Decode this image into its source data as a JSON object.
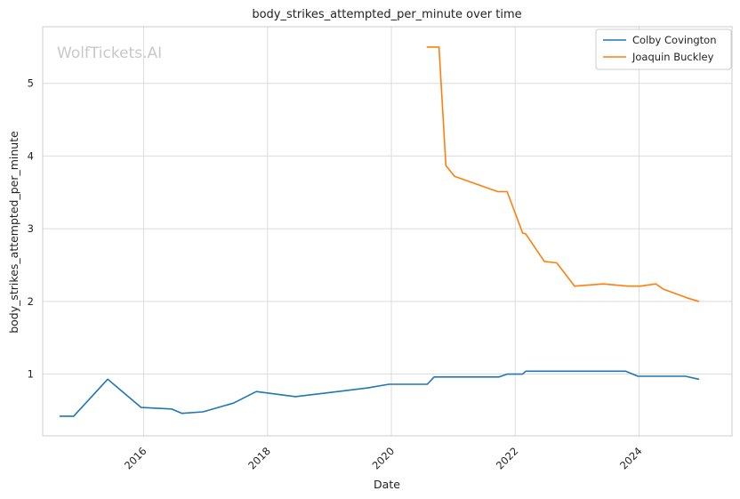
{
  "chart_data": {
    "type": "line",
    "title": "body_strikes_attempted_per_minute over time",
    "xlabel": "Date",
    "ylabel": "body_strikes_attempted_per_minute",
    "watermark": "WolfTickets.AI",
    "xlim": [
      2014.37,
      2025.5
    ],
    "ylim": [
      0.15,
      5.78
    ],
    "x_ticks": [
      2016,
      2018,
      2020,
      2022,
      2024
    ],
    "y_ticks": [
      1,
      2,
      3,
      4,
      5
    ],
    "grid": true,
    "legend_position": "top-right",
    "series": [
      {
        "name": "Colby Covington",
        "color": "#1f77b4",
        "points": [
          [
            2014.65,
            0.42
          ],
          [
            2014.87,
            0.42
          ],
          [
            2015.42,
            0.93
          ],
          [
            2015.96,
            0.54
          ],
          [
            2016.45,
            0.52
          ],
          [
            2016.62,
            0.46
          ],
          [
            2016.96,
            0.48
          ],
          [
            2017.45,
            0.6
          ],
          [
            2017.82,
            0.76
          ],
          [
            2018.45,
            0.69
          ],
          [
            2019.62,
            0.81
          ],
          [
            2019.96,
            0.86
          ],
          [
            2020.58,
            0.86
          ],
          [
            2020.69,
            0.96
          ],
          [
            2021.74,
            0.96
          ],
          [
            2021.87,
            1.0
          ],
          [
            2022.12,
            1.0
          ],
          [
            2022.17,
            1.04
          ],
          [
            2023.78,
            1.04
          ],
          [
            2023.98,
            0.97
          ],
          [
            2024.75,
            0.97
          ],
          [
            2024.96,
            0.93
          ]
        ]
      },
      {
        "name": "Joaquin Buckley",
        "color": "#ff7f0e",
        "points": [
          [
            2020.58,
            5.5
          ],
          [
            2020.77,
            5.5
          ],
          [
            2020.88,
            3.87
          ],
          [
            2021.02,
            3.72
          ],
          [
            2021.72,
            3.51
          ],
          [
            2021.87,
            3.51
          ],
          [
            2022.12,
            2.94
          ],
          [
            2022.17,
            2.93
          ],
          [
            2022.47,
            2.55
          ],
          [
            2022.67,
            2.53
          ],
          [
            2022.96,
            2.21
          ],
          [
            2023.42,
            2.24
          ],
          [
            2023.82,
            2.21
          ],
          [
            2024.02,
            2.21
          ],
          [
            2024.27,
            2.24
          ],
          [
            2024.39,
            2.17
          ],
          [
            2024.77,
            2.05
          ],
          [
            2024.96,
            2.0
          ]
        ]
      }
    ]
  }
}
